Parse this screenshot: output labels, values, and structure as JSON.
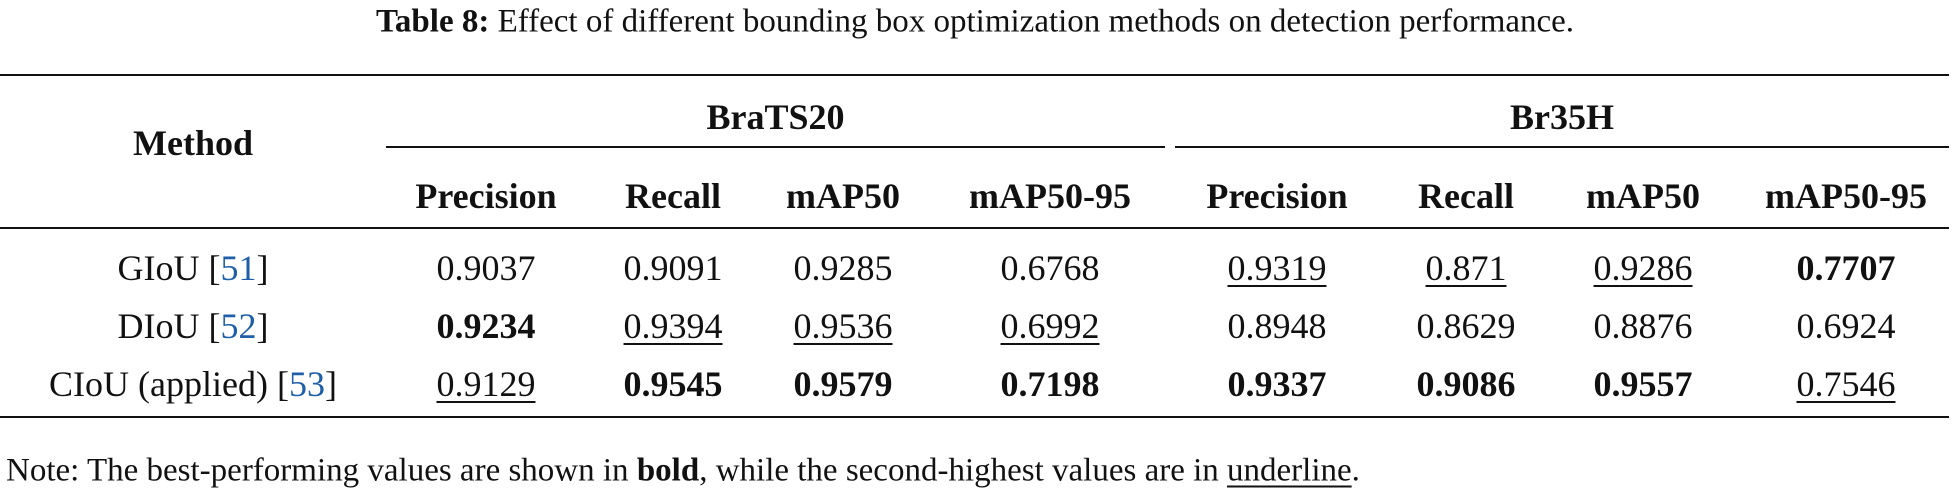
{
  "caption": {
    "label": "Table 8:",
    "text": "Effect of different bounding box optimization methods on detection performance."
  },
  "table": {
    "method_header": "Method",
    "groups": [
      {
        "name": "BraTS20",
        "columns": [
          "Precision",
          "Recall",
          "mAP50",
          "mAP50-95"
        ]
      },
      {
        "name": "Br35H",
        "columns": [
          "Precision",
          "Recall",
          "mAP50",
          "mAP50-95"
        ]
      }
    ],
    "rows": [
      {
        "method": "GIoU",
        "ref": [
          "[",
          "51",
          "]"
        ],
        "cells": [
          {
            "text": "0.9037"
          },
          {
            "text": "0.9091"
          },
          {
            "text": "0.9285"
          },
          {
            "text": "0.6768"
          },
          {
            "text": "0.9319",
            "style": "underline"
          },
          {
            "text": "0.871",
            "style": "underline"
          },
          {
            "text": "0.9286",
            "style": "underline"
          },
          {
            "text": "0.7707",
            "style": "bold"
          }
        ]
      },
      {
        "method": "DIoU",
        "ref": [
          "[",
          "52",
          "]"
        ],
        "cells": [
          {
            "text": "0.9234",
            "style": "bold"
          },
          {
            "text": "0.9394",
            "style": "underline"
          },
          {
            "text": "0.9536",
            "style": "underline"
          },
          {
            "text": "0.6992",
            "style": "underline"
          },
          {
            "text": "0.8948"
          },
          {
            "text": "0.8629"
          },
          {
            "text": "0.8876"
          },
          {
            "text": "0.6924"
          }
        ]
      },
      {
        "method": "CIoU (applied)",
        "ref": [
          "[",
          "53",
          "]"
        ],
        "cells": [
          {
            "text": "0.9129",
            "style": "underline"
          },
          {
            "text": "0.9545",
            "style": "bold"
          },
          {
            "text": "0.9579",
            "style": "bold"
          },
          {
            "text": "0.7198",
            "style": "bold"
          },
          {
            "text": "0.9337",
            "style": "bold"
          },
          {
            "text": "0.9086",
            "style": "bold"
          },
          {
            "text": "0.9557",
            "style": "bold"
          },
          {
            "text": "0.7546",
            "style": "underline"
          }
        ]
      }
    ]
  },
  "note": {
    "parts": [
      {
        "text": "Note: The best-performing values are shown in "
      },
      {
        "text": "bold",
        "style": "bold"
      },
      {
        "text": ", while the second-highest values are in "
      },
      {
        "text": "underline",
        "style": "underline"
      },
      {
        "text": "."
      }
    ]
  }
}
